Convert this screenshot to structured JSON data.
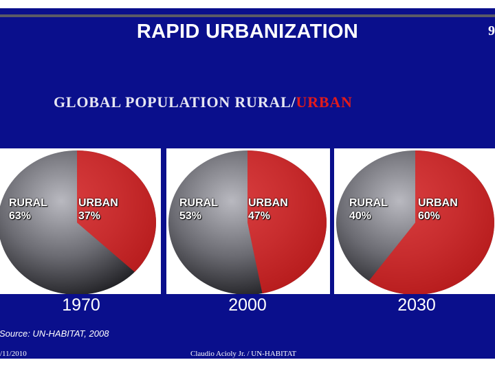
{
  "slide": {
    "title": "RAPID URBANIZATION",
    "page_number": "9",
    "subtitle_rural": "GLOBAL POPULATION RURAL/",
    "subtitle_urban": "URBAN",
    "source": "Source: UN-HABITAT, 2008",
    "footer_date": "/11/2010",
    "footer_author": "Claudio Acioly Jr. / UN-HABITAT"
  },
  "colors": {
    "background": "#0a0f8c",
    "urban": "#e21b1b",
    "rural_globe": "#6b6b72"
  },
  "chart_data": [
    {
      "type": "pie",
      "category_label": "1970",
      "series": [
        {
          "name": "RURAL",
          "label": "63%",
          "value": 63
        },
        {
          "name": "URBAN",
          "label": "37%",
          "value": 37
        }
      ]
    },
    {
      "type": "pie",
      "category_label": "2000",
      "series": [
        {
          "name": "RURAL",
          "label": "53%",
          "value": 53
        },
        {
          "name": "URBAN",
          "label": "47%",
          "value": 47
        }
      ]
    },
    {
      "type": "pie",
      "category_label": "2030",
      "series": [
        {
          "name": "RURAL",
          "label": "40%",
          "value": 40
        },
        {
          "name": "URBAN",
          "label": "60%",
          "value": 60
        }
      ]
    }
  ]
}
